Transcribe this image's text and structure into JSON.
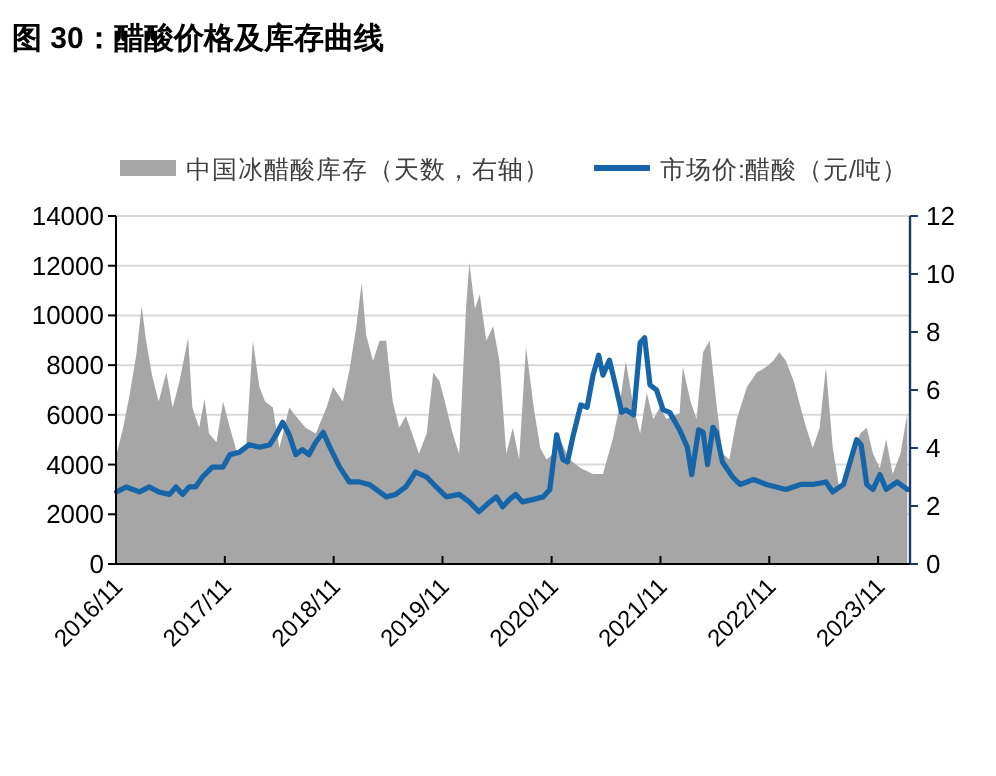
{
  "chart_data": {
    "type": "line",
    "title": "图 30：醋酸价格及库存曲线",
    "legend": "top",
    "grid": "y",
    "xlim": [
      "2016-11-01",
      "2024-02-16"
    ],
    "xticks": [
      {
        "value": "2016-11-01",
        "label": "2016/11"
      },
      {
        "value": "2017-11-01",
        "label": "2017/11"
      },
      {
        "value": "2018-11-01",
        "label": "2018/11"
      },
      {
        "value": "2019-11-01",
        "label": "2019/11"
      },
      {
        "value": "2020-11-01",
        "label": "2020/11"
      },
      {
        "value": "2021-11-01",
        "label": "2021/11"
      },
      {
        "value": "2022-11-01",
        "label": "2022/11"
      },
      {
        "value": "2023-11-01",
        "label": "2023/11"
      }
    ],
    "ylim": [
      0,
      14000
    ],
    "yticks": [
      0,
      2000,
      4000,
      6000,
      8000,
      10000,
      12000,
      14000
    ],
    "y2lim": [
      0,
      12
    ],
    "y2ticks": [
      0,
      2,
      4,
      6,
      8,
      10,
      12
    ],
    "series": [
      {
        "name": "中国冰醋酸库存（天数，右轴）",
        "type": "area",
        "axis": "y2",
        "color": "#a6a6a6",
        "x": [
          "2016-11-03",
          "2016-11-25",
          "2016-12-16",
          "2017-01-08",
          "2017-01-26",
          "2017-02-10",
          "2017-03-02",
          "2017-03-24",
          "2017-04-19",
          "2017-05-10",
          "2017-06-02",
          "2017-07-01",
          "2017-07-15",
          "2017-08-07",
          "2017-08-25",
          "2017-09-09",
          "2017-10-04",
          "2017-10-26",
          "2017-11-18",
          "2017-12-13",
          "2018-01-11",
          "2018-02-03",
          "2018-02-25",
          "2018-03-16",
          "2018-04-11",
          "2018-05-03",
          "2018-06-05",
          "2018-06-27",
          "2018-07-30",
          "2018-09-02",
          "2018-10-08",
          "2018-10-30",
          "2018-12-02",
          "2018-12-24",
          "2019-01-15",
          "2019-02-03",
          "2019-02-18",
          "2019-03-13",
          "2019-04-04",
          "2019-04-26",
          "2019-05-18",
          "2019-06-09",
          "2019-07-01",
          "2019-07-22",
          "2019-08-14",
          "2019-09-09",
          "2019-10-01",
          "2019-10-22",
          "2019-11-14",
          "2019-12-05",
          "2019-12-27",
          "2020-01-19",
          "2020-01-30",
          "2020-02-18",
          "2020-03-05",
          "2020-03-27",
          "2020-04-19",
          "2020-05-10",
          "2020-06-02",
          "2020-06-24",
          "2020-07-15",
          "2020-08-07",
          "2020-09-02",
          "2020-09-24",
          "2020-10-15",
          "2020-11-07",
          "2020-11-28",
          "2021-01-01",
          "2021-02-07",
          "2021-03-20",
          "2021-04-22",
          "2021-05-25",
          "2021-06-16",
          "2021-07-08",
          "2021-08-03",
          "2021-08-25",
          "2021-09-16",
          "2021-10-08",
          "2021-10-30",
          "2021-11-21",
          "2022-01-04",
          "2022-01-15",
          "2022-02-10",
          "2022-03-02",
          "2022-03-24",
          "2022-04-15",
          "2022-05-07",
          "2022-05-28",
          "2022-06-20",
          "2022-07-15",
          "2022-08-18",
          "2022-09-20",
          "2022-10-22",
          "2022-11-14",
          "2022-12-05",
          "2022-12-27",
          "2023-01-22",
          "2023-02-14",
          "2023-03-05",
          "2023-03-27",
          "2023-04-19",
          "2023-05-10",
          "2023-06-02",
          "2023-06-24",
          "2023-07-19",
          "2023-08-10",
          "2023-09-02",
          "2023-09-24",
          "2023-10-15",
          "2023-11-07",
          "2023-11-28",
          "2023-12-20",
          "2024-01-15",
          "2024-02-07"
        ],
        "values": [
          3.8,
          4.7,
          5.8,
          7.2,
          8.9,
          7.7,
          6.5,
          5.6,
          6.6,
          5.4,
          6.3,
          7.8,
          5.4,
          4.7,
          5.7,
          4.5,
          4.2,
          5.6,
          4.7,
          3.8,
          4.0,
          7.7,
          6.1,
          5.6,
          5.4,
          4.0,
          5.4,
          5.1,
          4.7,
          4.5,
          5.4,
          6.1,
          5.6,
          6.7,
          8.1,
          9.7,
          7.9,
          7.0,
          7.7,
          7.7,
          5.6,
          4.7,
          5.1,
          4.5,
          3.8,
          4.5,
          6.6,
          6.3,
          5.4,
          4.5,
          3.8,
          8.8,
          10.4,
          8.8,
          9.3,
          7.7,
          8.2,
          7.0,
          3.8,
          4.7,
          3.6,
          7.5,
          5.4,
          4.0,
          3.6,
          3.8,
          4.3,
          3.6,
          3.3,
          3.1,
          3.1,
          4.3,
          5.4,
          7.0,
          5.4,
          4.5,
          5.9,
          5.0,
          5.4,
          5.0,
          5.2,
          6.8,
          5.6,
          5.0,
          7.3,
          7.7,
          5.6,
          3.8,
          3.6,
          5.0,
          6.1,
          6.6,
          6.8,
          7.0,
          7.3,
          7.0,
          6.3,
          5.4,
          4.7,
          4.0,
          4.7,
          6.8,
          4.0,
          2.6,
          2.9,
          3.8,
          4.5,
          4.7,
          3.8,
          3.3,
          4.3,
          3.1,
          3.8,
          5.2
        ]
      },
      {
        "name": "市场价:醋酸（元/吨）",
        "axis": "y",
        "color": "#1565a8",
        "x": [
          "2016-11-03",
          "2016-12-05",
          "2017-01-19",
          "2017-02-21",
          "2017-03-24",
          "2017-04-30",
          "2017-05-21",
          "2017-06-13",
          "2017-07-04",
          "2017-07-26",
          "2017-08-18",
          "2017-09-20",
          "2017-10-26",
          "2017-11-18",
          "2017-12-20",
          "2018-01-22",
          "2018-02-25",
          "2018-04-01",
          "2018-04-22",
          "2018-05-14",
          "2018-06-05",
          "2018-06-27",
          "2018-07-19",
          "2018-08-10",
          "2018-09-02",
          "2018-09-27",
          "2018-10-19",
          "2018-11-21",
          "2018-12-24",
          "2019-01-26",
          "2019-02-28",
          "2019-04-04",
          "2019-04-26",
          "2019-05-28",
          "2019-07-01",
          "2019-08-03",
          "2019-09-09",
          "2019-10-11",
          "2019-11-14",
          "2019-12-27",
          "2020-01-30",
          "2020-03-02",
          "2020-04-08",
          "2020-04-30",
          "2020-05-21",
          "2020-06-13",
          "2020-07-04",
          "2020-07-26",
          "2020-09-02",
          "2020-10-04",
          "2020-10-26",
          "2020-11-18",
          "2020-12-09",
          "2020-12-24",
          "2021-01-11",
          "2021-02-07",
          "2021-02-28",
          "2021-03-20",
          "2021-04-08",
          "2021-04-22",
          "2021-05-14",
          "2021-06-05",
          "2021-06-24",
          "2021-07-08",
          "2021-08-03",
          "2021-08-25",
          "2021-09-09",
          "2021-09-27",
          "2021-10-19",
          "2021-11-10",
          "2021-12-02",
          "2022-01-04",
          "2022-01-30",
          "2022-02-14",
          "2022-03-09",
          "2022-03-24",
          "2022-04-08",
          "2022-04-26",
          "2022-05-07",
          "2022-05-28",
          "2022-07-01",
          "2022-07-26",
          "2022-08-18",
          "2022-09-09",
          "2022-10-22",
          "2022-12-27",
          "2023-02-14",
          "2023-03-27",
          "2023-05-10",
          "2023-06-02",
          "2023-07-08",
          "2023-07-30",
          "2023-08-21",
          "2023-09-05",
          "2023-09-24",
          "2023-10-15",
          "2023-11-07",
          "2023-11-28",
          "2024-01-04",
          "2024-02-07"
        ],
        "values": [
          2900,
          3100,
          2900,
          3100,
          2900,
          2800,
          3100,
          2800,
          3100,
          3100,
          3500,
          3900,
          3900,
          4400,
          4500,
          4800,
          4700,
          4800,
          5200,
          5700,
          5200,
          4400,
          4600,
          4400,
          4900,
          5300,
          4700,
          3900,
          3300,
          3300,
          3200,
          2900,
          2700,
          2800,
          3100,
          3700,
          3500,
          3100,
          2700,
          2800,
          2500,
          2100,
          2500,
          2700,
          2300,
          2600,
          2800,
          2500,
          2600,
          2700,
          3000,
          5200,
          4200,
          4100,
          5100,
          6400,
          6300,
          7600,
          8400,
          7600,
          8200,
          7100,
          6100,
          6200,
          6000,
          8900,
          9100,
          7200,
          7000,
          6200,
          6100,
          5400,
          4700,
          3600,
          5400,
          5300,
          4000,
          5500,
          5300,
          4100,
          3500,
          3200,
          3300,
          3400,
          3200,
          3000,
          3200,
          3200,
          3300,
          2900,
          3200,
          4100,
          5000,
          4800,
          3200,
          3000,
          3600,
          3000,
          3300,
          3000
        ]
      }
    ]
  }
}
